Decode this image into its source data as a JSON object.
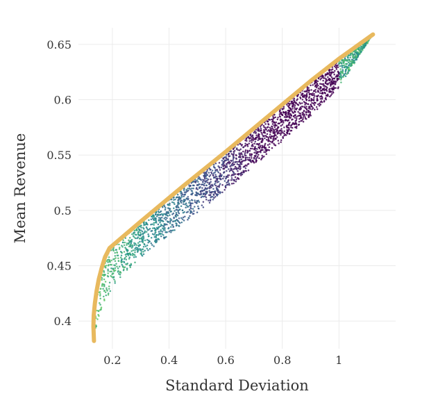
{
  "chart_data": {
    "type": "scatter",
    "title": "",
    "xlabel": "Standard Deviation",
    "ylabel": "Mean Revenue",
    "xlim": [
      0.08,
      1.2
    ],
    "ylim": [
      0.375,
      0.665
    ],
    "x_ticks": [
      0.2,
      0.4,
      0.6,
      0.8,
      1.0
    ],
    "x_tick_labels": [
      "0.2",
      "0.4",
      "0.6",
      "0.8",
      "1"
    ],
    "y_ticks": [
      0.4,
      0.45,
      0.5,
      0.55,
      0.6,
      0.65
    ],
    "y_tick_labels": [
      "0.4",
      "0.45",
      "0.5",
      "0.55",
      "0.6",
      "0.65"
    ],
    "grid": true,
    "legend": "none",
    "frontier": {
      "color": "#E8B95E",
      "points": [
        {
          "x": 0.135,
          "y": 0.382
        },
        {
          "x": 0.133,
          "y": 0.395
        },
        {
          "x": 0.134,
          "y": 0.405
        },
        {
          "x": 0.138,
          "y": 0.416
        },
        {
          "x": 0.144,
          "y": 0.427
        },
        {
          "x": 0.152,
          "y": 0.438
        },
        {
          "x": 0.162,
          "y": 0.448
        },
        {
          "x": 0.174,
          "y": 0.458
        },
        {
          "x": 0.19,
          "y": 0.466
        },
        {
          "x": 0.3,
          "y": 0.49
        },
        {
          "x": 0.45,
          "y": 0.522
        },
        {
          "x": 0.6,
          "y": 0.553
        },
        {
          "x": 0.75,
          "y": 0.585
        },
        {
          "x": 0.9,
          "y": 0.617
        },
        {
          "x": 1.0,
          "y": 0.637
        },
        {
          "x": 1.12,
          "y": 0.659
        }
      ]
    },
    "scatter": {
      "point_count": 2600,
      "colormap": "viridis",
      "colors": [
        "#440154",
        "#3b528b",
        "#21918c",
        "#5ec962"
      ],
      "lower_boundary": [
        {
          "x": 0.135,
          "y": 0.382
        },
        {
          "x": 0.16,
          "y": 0.405
        },
        {
          "x": 0.2,
          "y": 0.423
        },
        {
          "x": 0.25,
          "y": 0.439
        },
        {
          "x": 0.3,
          "y": 0.452
        },
        {
          "x": 0.4,
          "y": 0.472
        },
        {
          "x": 0.5,
          "y": 0.492
        },
        {
          "x": 0.6,
          "y": 0.512
        },
        {
          "x": 0.7,
          "y": 0.534
        },
        {
          "x": 0.8,
          "y": 0.557
        },
        {
          "x": 0.9,
          "y": 0.58
        },
        {
          "x": 1.0,
          "y": 0.606
        },
        {
          "x": 1.12,
          "y": 0.659
        }
      ]
    }
  }
}
